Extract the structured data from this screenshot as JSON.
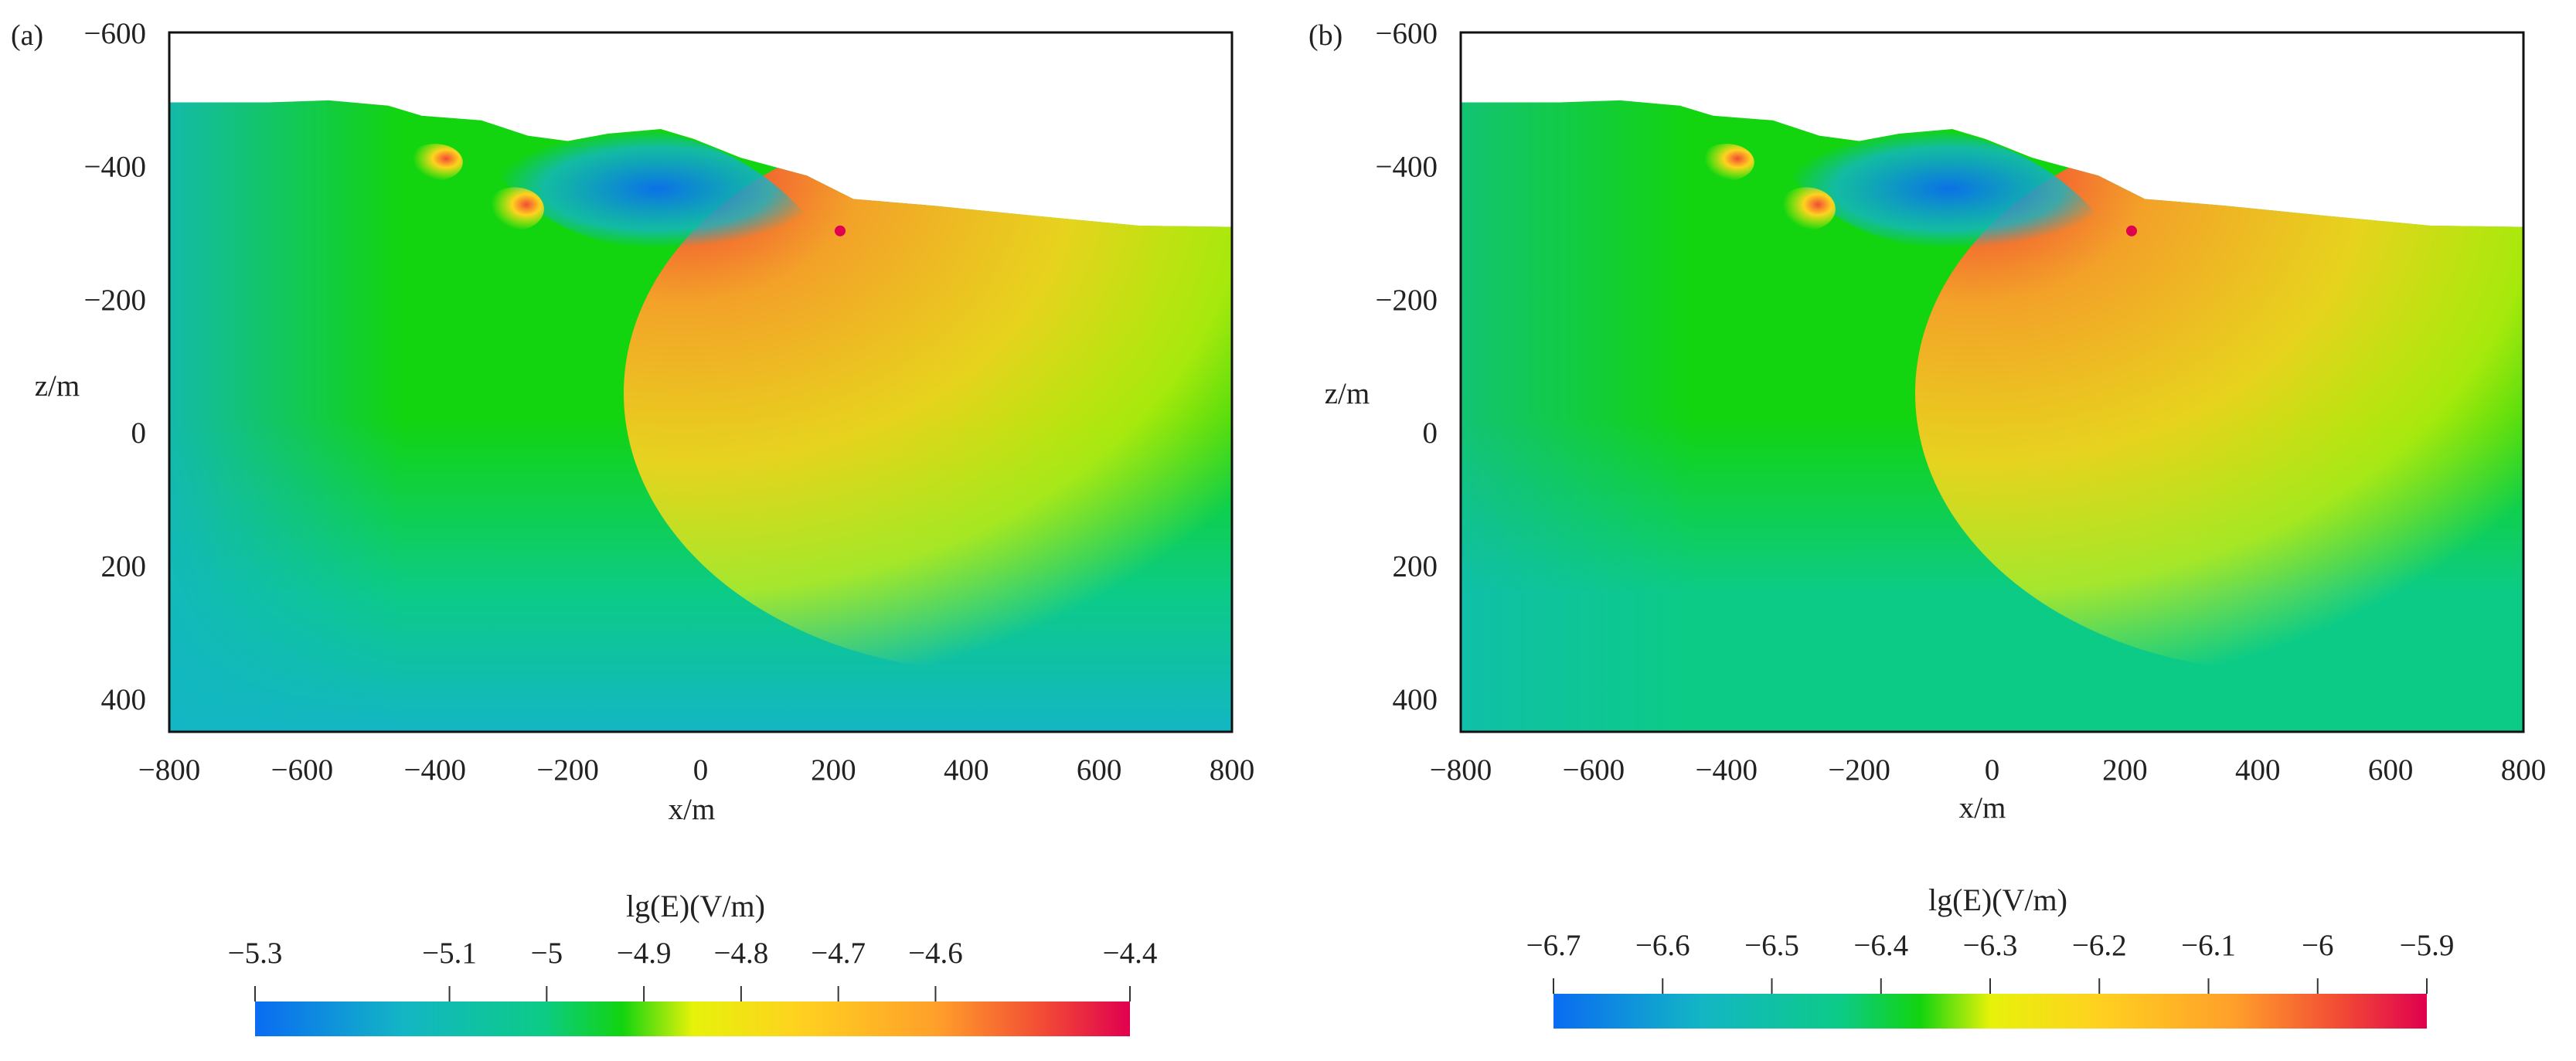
{
  "chart_data": [
    {
      "type": "heatmap",
      "panel_label": "(a)",
      "xlabel": "x/m",
      "ylabel": "z/m",
      "xlim": [
        -800,
        800
      ],
      "ylim": [
        -600,
        450
      ],
      "y_inverted": true,
      "x_ticks": [
        -800,
        -600,
        -400,
        -200,
        0,
        200,
        400,
        600,
        800
      ],
      "x_tick_labels": [
        "−800",
        "−600",
        "−400",
        "−200",
        "0",
        "200",
        "400",
        "600",
        "800"
      ],
      "y_ticks": [
        -600,
        -400,
        -200,
        0,
        200,
        400
      ],
      "y_tick_labels": [
        "−600",
        "−400",
        "−200",
        "0",
        "200",
        "400"
      ],
      "surface_profile": [
        {
          "x": -800,
          "z": -495
        },
        {
          "x": -650,
          "z": -495
        },
        {
          "x": -560,
          "z": -498
        },
        {
          "x": -470,
          "z": -490
        },
        {
          "x": -420,
          "z": -475
        },
        {
          "x": -330,
          "z": -468
        },
        {
          "x": -260,
          "z": -445
        },
        {
          "x": -200,
          "z": -437
        },
        {
          "x": -140,
          "z": -448
        },
        {
          "x": -60,
          "z": -455
        },
        {
          "x": -10,
          "z": -440
        },
        {
          "x": 60,
          "z": -412
        },
        {
          "x": 160,
          "z": -385
        },
        {
          "x": 230,
          "z": -350
        },
        {
          "x": 350,
          "z": -340
        },
        {
          "x": 500,
          "z": -325
        },
        {
          "x": 660,
          "z": -310
        },
        {
          "x": 800,
          "z": -308
        }
      ],
      "source_point": {
        "x": 210,
        "z": -302
      },
      "colorbar": {
        "title": "lg(E)(V/m)",
        "min": -5.3,
        "max": -4.4,
        "ticks": [
          -5.3,
          -5.1,
          -5.0,
          -4.9,
          -4.8,
          -4.7,
          -4.6,
          -4.4
        ],
        "tick_labels": [
          "−5.3",
          "−5.1",
          "−5",
          "−4.9",
          "−4.8",
          "−4.7",
          "−4.6",
          "−4.4"
        ],
        "colors": [
          "#0a6cf2",
          "#13b6c4",
          "#0ccb86",
          "#12d40f",
          "#e6f20a",
          "#ffd21f",
          "#ff9f2a",
          "#f24b35",
          "#e0004f"
        ]
      }
    },
    {
      "type": "heatmap",
      "panel_label": "(b)",
      "xlabel": "x/m",
      "ylabel": "z/m",
      "xlim": [
        -800,
        800
      ],
      "ylim": [
        -600,
        450
      ],
      "y_inverted": true,
      "x_ticks": [
        -800,
        -600,
        -400,
        -200,
        0,
        200,
        400,
        600,
        800
      ],
      "x_tick_labels": [
        "−800",
        "−600",
        "−400",
        "−200",
        "0",
        "200",
        "400",
        "600",
        "800"
      ],
      "y_ticks": [
        -600,
        -400,
        -200,
        0,
        200,
        400
      ],
      "y_tick_labels": [
        "−600",
        "−400",
        "−200",
        "0",
        "200",
        "400"
      ],
      "surface_profile": [
        {
          "x": -800,
          "z": -495
        },
        {
          "x": -650,
          "z": -495
        },
        {
          "x": -560,
          "z": -498
        },
        {
          "x": -470,
          "z": -490
        },
        {
          "x": -420,
          "z": -475
        },
        {
          "x": -330,
          "z": -468
        },
        {
          "x": -260,
          "z": -445
        },
        {
          "x": -200,
          "z": -437
        },
        {
          "x": -140,
          "z": -448
        },
        {
          "x": -60,
          "z": -455
        },
        {
          "x": -10,
          "z": -440
        },
        {
          "x": 60,
          "z": -412
        },
        {
          "x": 160,
          "z": -385
        },
        {
          "x": 230,
          "z": -350
        },
        {
          "x": 350,
          "z": -340
        },
        {
          "x": 500,
          "z": -325
        },
        {
          "x": 660,
          "z": -310
        },
        {
          "x": 800,
          "z": -308
        }
      ],
      "source_point": {
        "x": 210,
        "z": -302
      },
      "colorbar": {
        "title": "lg(E)(V/m)",
        "min": -6.7,
        "max": -5.9,
        "ticks": [
          -6.7,
          -6.6,
          -6.5,
          -6.4,
          -6.3,
          -6.2,
          -6.1,
          -6.0,
          -5.9
        ],
        "tick_labels": [
          "−6.7",
          "−6.6",
          "−6.5",
          "−6.4",
          "−6.3",
          "−6.2",
          "−6.1",
          "−6",
          "−5.9"
        ],
        "colors": [
          "#0a6cf2",
          "#13b6c4",
          "#0ccb86",
          "#12d40f",
          "#e6f20a",
          "#ffd21f",
          "#ff9f2a",
          "#f24b35",
          "#e0004f"
        ]
      }
    }
  ]
}
